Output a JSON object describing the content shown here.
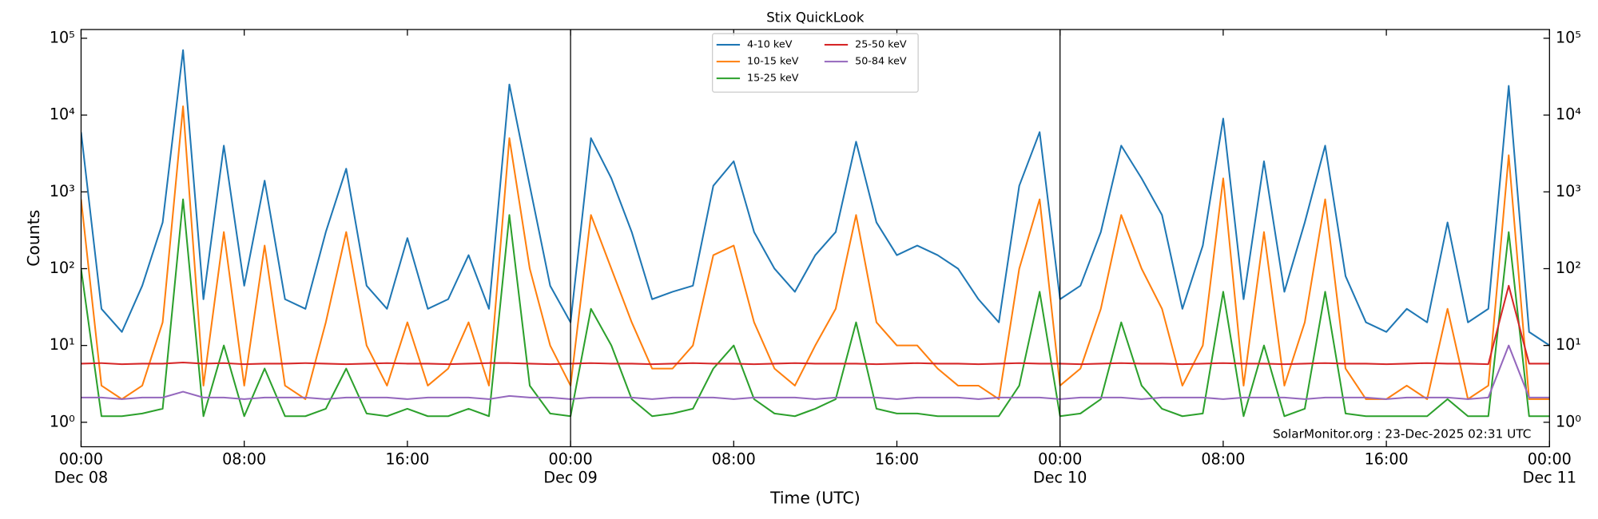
{
  "chart_data": {
    "type": "line",
    "title": "Stix QuickLook",
    "xlabel": "Time (UTC)",
    "ylabel": "Counts",
    "annotation": "SolarMonitor.org : 23-Dec-2025 02:31 UTC",
    "log_y": true,
    "legend": "upper center",
    "legend_columns": 2,
    "xlim": [
      "Dec 08 00:00",
      "Dec 11 00:00"
    ],
    "xticks": [
      {
        "value": "Dec 08 00:00",
        "label": [
          "00:00",
          "Dec 08"
        ]
      },
      {
        "value": "Dec 08 08:00",
        "label": "08:00"
      },
      {
        "value": "Dec 08 16:00",
        "label": "16:00"
      },
      {
        "value": "Dec 09 00:00",
        "label": [
          "00:00",
          "Dec 09"
        ]
      },
      {
        "value": "Dec 09 08:00",
        "label": "08:00"
      },
      {
        "value": "Dec 09 16:00",
        "label": "16:00"
      },
      {
        "value": "Dec 10 00:00",
        "label": [
          "00:00",
          "Dec 10"
        ]
      },
      {
        "value": "Dec 10 08:00",
        "label": "08:00"
      },
      {
        "value": "Dec 10 16:00",
        "label": "16:00"
      },
      {
        "value": "Dec 11 00:00",
        "label": [
          "00:00",
          "Dec 11"
        ]
      }
    ],
    "ylim": [
      0.48,
      130000
    ],
    "yticks": [
      {
        "value": 1,
        "label": "10⁰"
      },
      {
        "value": 10,
        "label": "10¹"
      },
      {
        "value": 100,
        "label": "10²"
      },
      {
        "value": 1000,
        "label": "10³"
      },
      {
        "value": 10000,
        "label": "10⁴"
      },
      {
        "value": 100000,
        "label": "10⁵"
      }
    ],
    "x": [
      "Dec 08 00:00",
      "Dec 08 01:00",
      "Dec 08 02:00",
      "Dec 08 03:00",
      "Dec 08 04:00",
      "Dec 08 05:00",
      "Dec 08 06:00",
      "Dec 08 07:00",
      "Dec 08 08:00",
      "Dec 08 09:00",
      "Dec 08 10:00",
      "Dec 08 11:00",
      "Dec 08 12:00",
      "Dec 08 13:00",
      "Dec 08 14:00",
      "Dec 08 15:00",
      "Dec 08 16:00",
      "Dec 08 17:00",
      "Dec 08 18:00",
      "Dec 08 19:00",
      "Dec 08 20:00",
      "Dec 08 21:00",
      "Dec 08 22:00",
      "Dec 08 23:00",
      "Dec 09 00:00",
      "Dec 09 01:00",
      "Dec 09 02:00",
      "Dec 09 03:00",
      "Dec 09 04:00",
      "Dec 09 05:00",
      "Dec 09 06:00",
      "Dec 09 07:00",
      "Dec 09 08:00",
      "Dec 09 09:00",
      "Dec 09 10:00",
      "Dec 09 11:00",
      "Dec 09 12:00",
      "Dec 09 13:00",
      "Dec 09 14:00",
      "Dec 09 15:00",
      "Dec 09 16:00",
      "Dec 09 17:00",
      "Dec 09 18:00",
      "Dec 09 19:00",
      "Dec 09 20:00",
      "Dec 09 21:00",
      "Dec 09 22:00",
      "Dec 09 23:00",
      "Dec 10 00:00",
      "Dec 10 01:00",
      "Dec 10 02:00",
      "Dec 10 03:00",
      "Dec 10 04:00",
      "Dec 10 05:00",
      "Dec 10 06:00",
      "Dec 10 07:00",
      "Dec 10 08:00",
      "Dec 10 09:00",
      "Dec 10 10:00",
      "Dec 10 11:00",
      "Dec 10 12:00",
      "Dec 10 13:00",
      "Dec 10 14:00",
      "Dec 10 15:00",
      "Dec 10 16:00",
      "Dec 10 17:00",
      "Dec 10 18:00",
      "Dec 10 19:00",
      "Dec 10 20:00",
      "Dec 10 21:00",
      "Dec 10 22:00",
      "Dec 10 23:00",
      "Dec 11 00:00"
    ],
    "series": [
      {
        "name": "4-10 keV",
        "color": "#1f77b4",
        "values": [
          6000,
          30,
          15,
          60,
          400,
          70000,
          40,
          4000,
          60,
          1400,
          40,
          30,
          300,
          2000,
          60,
          30,
          250,
          30,
          40,
          150,
          30,
          25000,
          1200,
          60,
          20,
          5000,
          1500,
          300,
          40,
          50,
          60,
          1200,
          2500,
          300,
          100,
          50,
          150,
          300,
          4500,
          400,
          150,
          200,
          150,
          100,
          40,
          20,
          1200,
          6000,
          40,
          60,
          300,
          4000,
          1500,
          500,
          30,
          200,
          9000,
          40,
          2500,
          50,
          400,
          4000,
          80,
          20,
          15,
          30,
          20,
          400,
          20,
          30,
          24000,
          15,
          10
        ]
      },
      {
        "name": "10-15 keV",
        "color": "#ff7f0e",
        "values": [
          800,
          3,
          2,
          3,
          20,
          13000,
          3,
          300,
          3,
          200,
          3,
          2,
          20,
          300,
          10,
          3,
          20,
          3,
          5,
          20,
          3,
          5000,
          100,
          10,
          3,
          500,
          100,
          20,
          5,
          5,
          10,
          150,
          200,
          20,
          5,
          3,
          10,
          30,
          500,
          20,
          10,
          10,
          5,
          3,
          3,
          2,
          100,
          800,
          3,
          5,
          30,
          500,
          100,
          30,
          3,
          10,
          1500,
          3,
          300,
          3,
          20,
          800,
          5,
          2,
          2,
          3,
          2,
          30,
          2,
          3,
          3000,
          2,
          2
        ]
      },
      {
        "name": "15-25 keV",
        "color": "#2ca02c",
        "values": [
          100,
          1.2,
          1.2,
          1.3,
          1.5,
          800,
          1.2,
          10,
          1.2,
          5,
          1.2,
          1.2,
          1.5,
          5,
          1.3,
          1.2,
          1.5,
          1.2,
          1.2,
          1.5,
          1.2,
          500,
          3,
          1.3,
          1.2,
          30,
          10,
          2,
          1.2,
          1.3,
          1.5,
          5,
          10,
          2,
          1.3,
          1.2,
          1.5,
          2,
          20,
          1.5,
          1.3,
          1.3,
          1.2,
          1.2,
          1.2,
          1.2,
          3,
          50,
          1.2,
          1.3,
          2,
          20,
          3,
          1.5,
          1.2,
          1.3,
          50,
          1.2,
          10,
          1.2,
          1.5,
          50,
          1.3,
          1.2,
          1.2,
          1.2,
          1.2,
          2,
          1.2,
          1.2,
          300,
          1.2,
          1.2
        ]
      },
      {
        "name": "25-50 keV",
        "color": "#d62728",
        "values": [
          5.8,
          5.9,
          5.7,
          5.8,
          5.8,
          6.0,
          5.8,
          5.9,
          5.7,
          5.8,
          5.8,
          5.9,
          5.8,
          5.7,
          5.8,
          5.9,
          5.8,
          5.8,
          5.7,
          5.8,
          5.9,
          5.9,
          5.8,
          5.7,
          5.8,
          5.9,
          5.8,
          5.8,
          5.7,
          5.8,
          5.9,
          5.8,
          5.8,
          5.7,
          5.8,
          5.9,
          5.8,
          5.8,
          5.8,
          5.7,
          5.8,
          5.9,
          5.8,
          5.8,
          5.7,
          5.8,
          5.9,
          5.8,
          5.8,
          5.7,
          5.8,
          5.9,
          5.8,
          5.8,
          5.7,
          5.8,
          5.9,
          5.8,
          5.8,
          5.7,
          5.8,
          5.9,
          5.8,
          5.8,
          5.7,
          5.8,
          5.9,
          5.8,
          5.8,
          5.7,
          60,
          5.8,
          5.8
        ]
      },
      {
        "name": "50-84 keV",
        "color": "#9467bd",
        "values": [
          2.1,
          2.1,
          2.0,
          2.1,
          2.1,
          2.5,
          2.1,
          2.1,
          2.0,
          2.1,
          2.1,
          2.1,
          2.0,
          2.1,
          2.1,
          2.1,
          2.0,
          2.1,
          2.1,
          2.1,
          2.0,
          2.2,
          2.1,
          2.1,
          2.0,
          2.1,
          2.1,
          2.1,
          2.0,
          2.1,
          2.1,
          2.1,
          2.0,
          2.1,
          2.1,
          2.1,
          2.0,
          2.1,
          2.1,
          2.1,
          2.0,
          2.1,
          2.1,
          2.1,
          2.0,
          2.1,
          2.1,
          2.1,
          2.0,
          2.1,
          2.1,
          2.1,
          2.0,
          2.1,
          2.1,
          2.1,
          2.0,
          2.1,
          2.1,
          2.1,
          2.0,
          2.1,
          2.1,
          2.1,
          2.0,
          2.1,
          2.1,
          2.1,
          2.0,
          2.1,
          10,
          2.1,
          2.1
        ]
      }
    ]
  }
}
